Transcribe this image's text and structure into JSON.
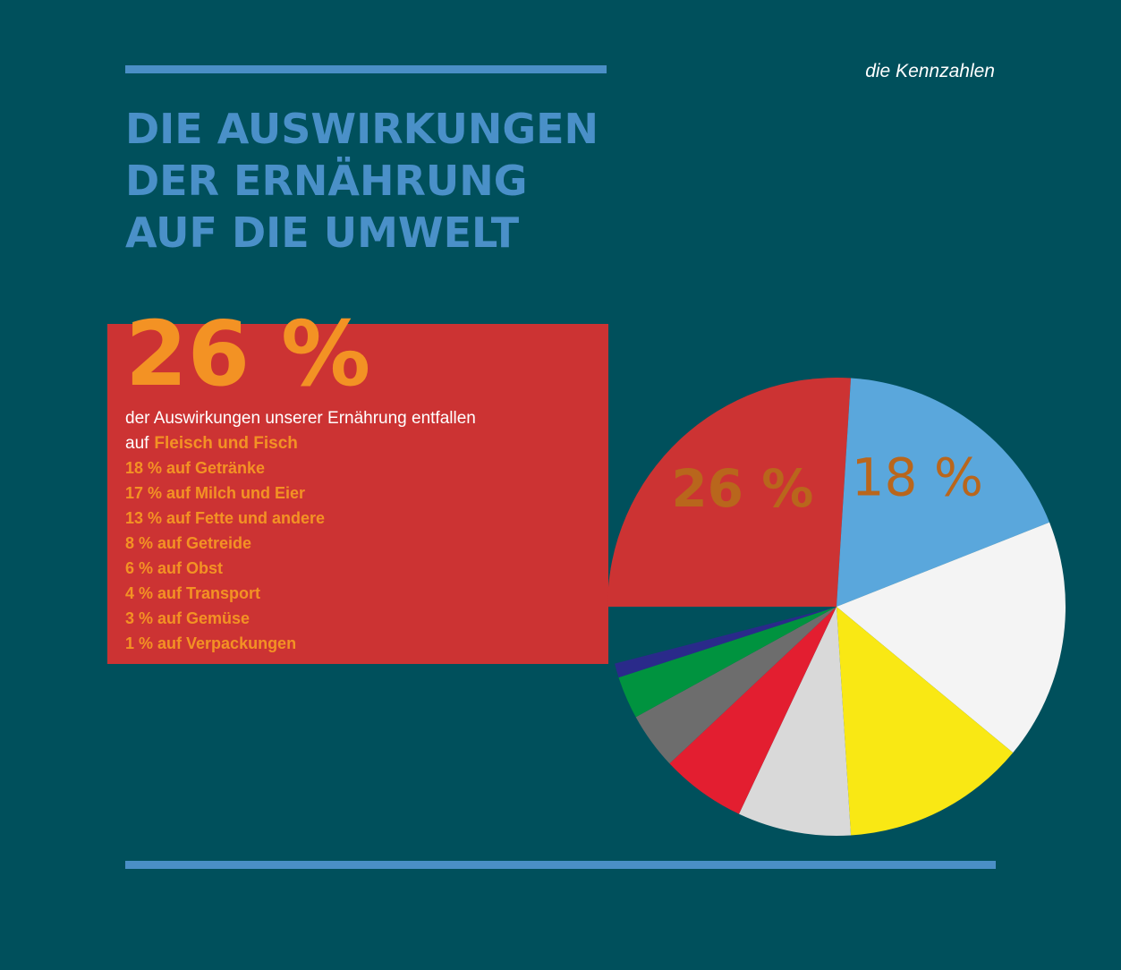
{
  "header": {
    "kicker": "die Kennzahlen",
    "title_lines": [
      "DIE AUSWIRKUNGEN",
      "DER ERNÄHRUNG",
      "AUF DIE UMWELT"
    ]
  },
  "highlight": "26 %",
  "intro_line1": "der Auswirkungen unserer Ernährung entfallen",
  "intro_line2": "auf",
  "list": [
    "18 % auf Getränke",
    "17 % auf Milch und Eier",
    "13 % auf Fette und andere",
    "8 % auf Getreide",
    "6 % auf Obst",
    "4 % auf Transport",
    "3 % auf Gemüse",
    "1 % auf Verpackungen"
  ],
  "chart_data": {
    "type": "pie",
    "categories": [
      "Fleisch und Fisch",
      "Getränke",
      "Milch und Eier",
      "Fette und andere",
      "Getreide",
      "Obst",
      "Transport",
      "Gemüse",
      "Verpackungen"
    ],
    "values": [
      26,
      18,
      17,
      13,
      8,
      6,
      4,
      3,
      1
    ],
    "value_labels": [
      "26 %",
      "18 %",
      null,
      null,
      null,
      null,
      null,
      null,
      null
    ],
    "colors": [
      "#cc3333",
      "#5aa7dc",
      "#f4f4f4",
      "#f9e814",
      "#d9d9d9",
      "#e31e30",
      "#6d6d6d",
      "#00933f",
      "#2a2a8a"
    ]
  }
}
